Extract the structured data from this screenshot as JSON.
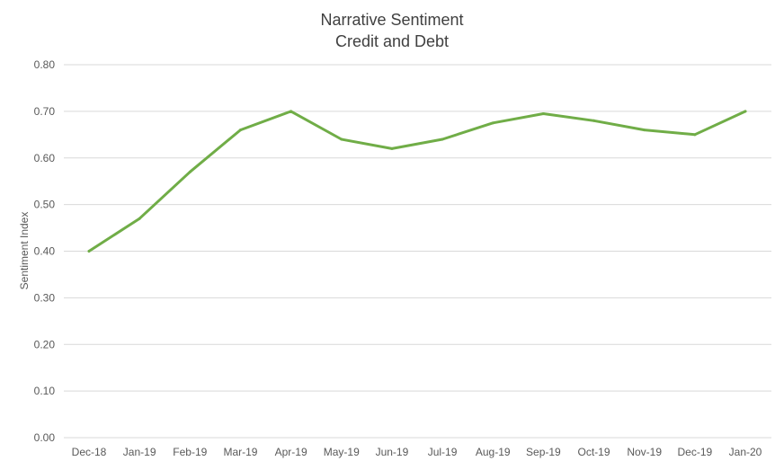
{
  "chart_data": {
    "type": "line",
    "title": "Narrative Sentiment",
    "subtitle": "Credit and Debt",
    "xlabel": "",
    "ylabel": "Sentiment Index",
    "ylim": [
      0,
      0.8
    ],
    "yticks": [
      "0.00",
      "0.10",
      "0.20",
      "0.30",
      "0.40",
      "0.50",
      "0.60",
      "0.70",
      "0.80"
    ],
    "grid": true,
    "legend": "none",
    "categories": [
      "Dec-18",
      "Jan-19",
      "Feb-19",
      "Mar-19",
      "Apr-19",
      "May-19",
      "Jun-19",
      "Jul-19",
      "Aug-19",
      "Sep-19",
      "Oct-19",
      "Nov-19",
      "Dec-19",
      "Jan-20"
    ],
    "series": [
      {
        "name": "Credit and Debt",
        "color": "#70ad47",
        "values": [
          0.4,
          0.47,
          0.57,
          0.66,
          0.7,
          0.64,
          0.62,
          0.64,
          0.675,
          0.695,
          0.68,
          0.66,
          0.65,
          0.7
        ]
      }
    ]
  }
}
